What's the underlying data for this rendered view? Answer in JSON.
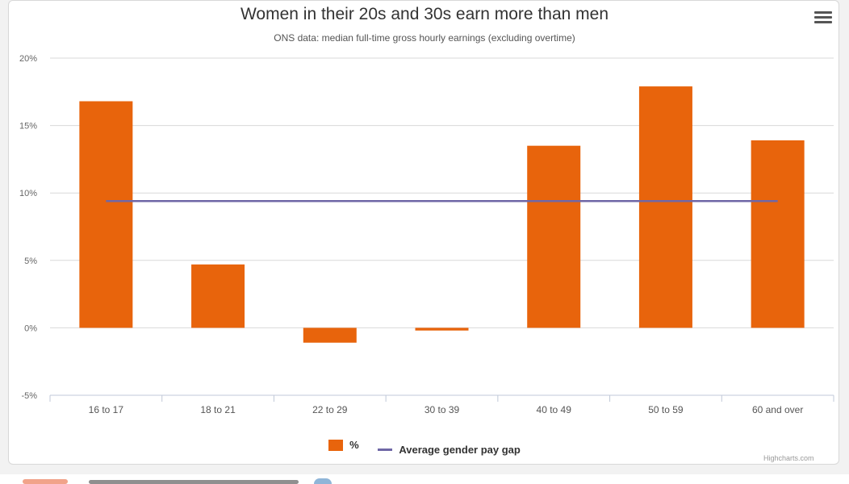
{
  "menu": {
    "icon": "hamburger-menu-icon"
  },
  "credit": "Highcharts.com",
  "chart_data": {
    "type": "bar",
    "title": "Women in their 20s and 30s earn more than men",
    "subtitle": "ONS data: median full-time gross hourly earnings (excluding overtime)",
    "categories": [
      "16 to 17",
      "18 to 21",
      "22 to 29",
      "30 to 39",
      "40 to 49",
      "50 to 59",
      "60 and over"
    ],
    "series": [
      {
        "name": "%",
        "type": "bar",
        "color": "#e8640c",
        "values": [
          16.8,
          4.7,
          -1.1,
          -0.2,
          13.5,
          17.9,
          13.9
        ]
      },
      {
        "name": "Average gender pay gap",
        "type": "line",
        "color": "#6f67a6",
        "values": [
          9.4,
          9.4,
          9.4,
          9.4,
          9.4,
          9.4,
          9.4
        ]
      }
    ],
    "ylim": [
      -5,
      20
    ],
    "yticks": [
      -5,
      0,
      5,
      10,
      15,
      20
    ],
    "ytick_labels": [
      "-5%",
      "0%",
      "5%",
      "10%",
      "15%",
      "20%"
    ],
    "grid": true,
    "legend": "bottom-center"
  }
}
